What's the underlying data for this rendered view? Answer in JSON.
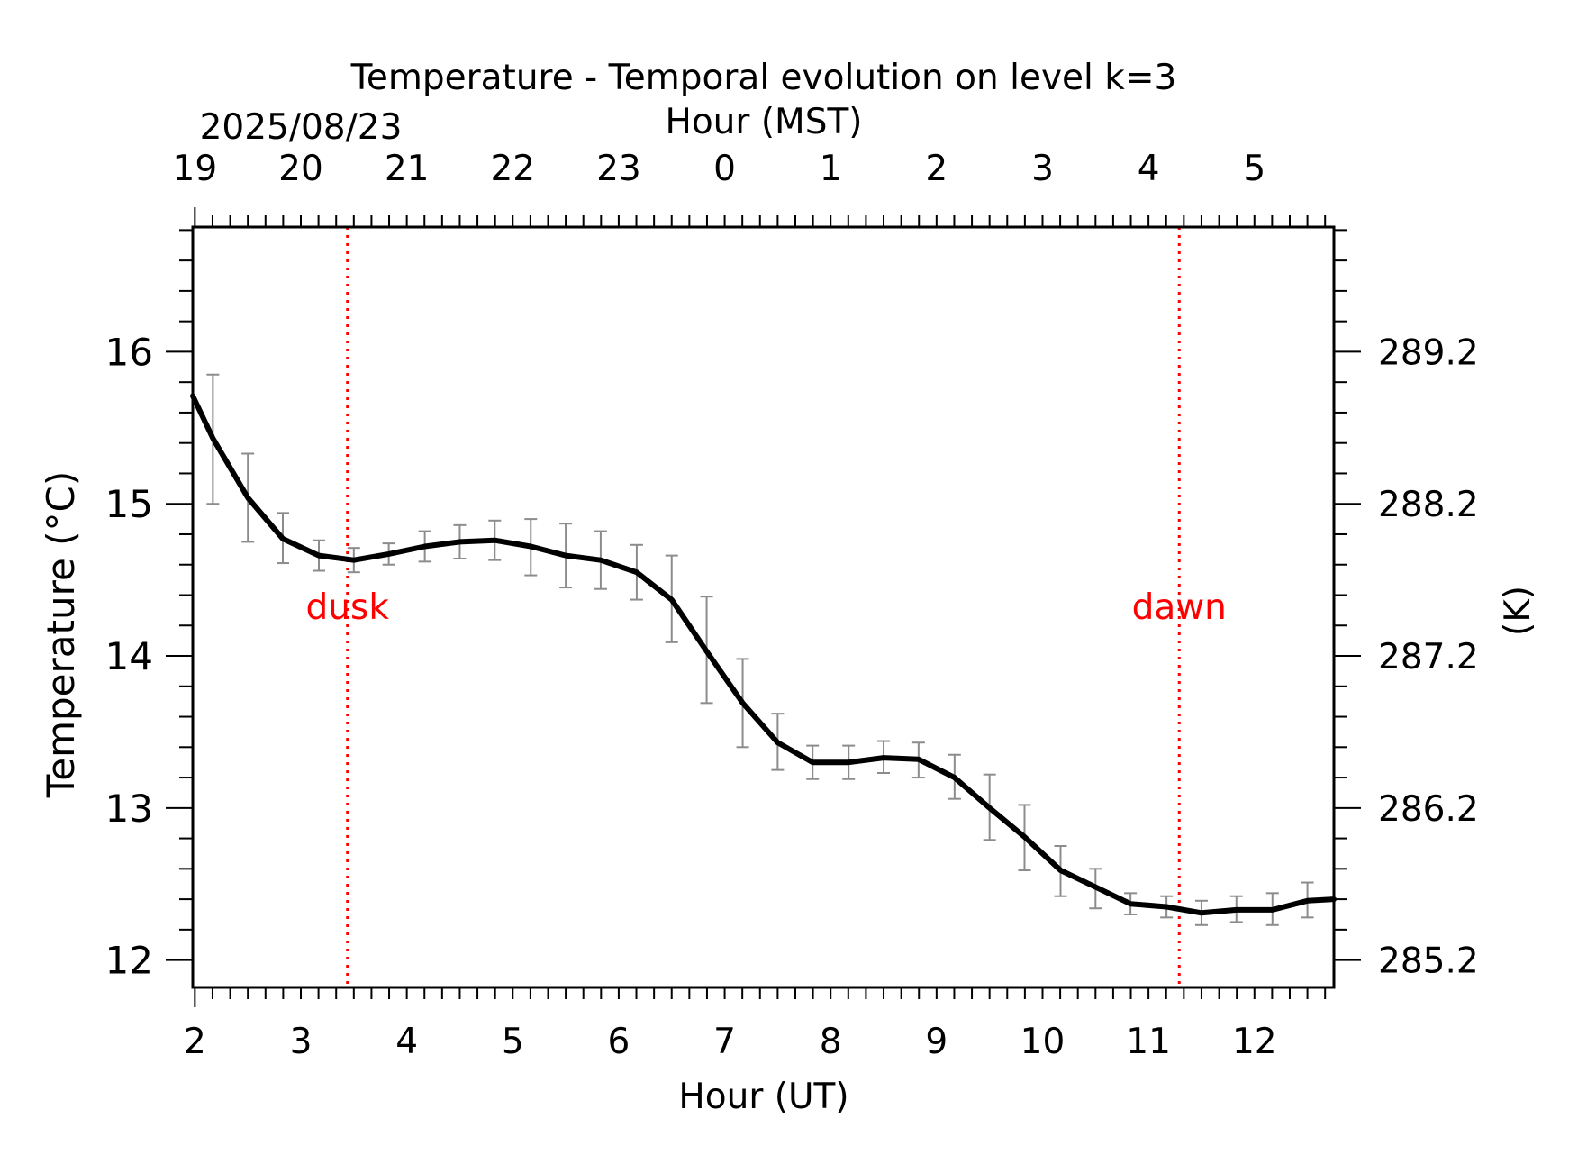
{
  "chart_data": {
    "type": "line",
    "title": "Temperature - Temporal evolution on level k=3",
    "date_label": "2025/08/23",
    "xlabel": "Hour (UT)",
    "xlabel_top": "Hour (MST)",
    "ylabel": "Temperature (°C)",
    "ylabel_right": "(K)",
    "xlim": [
      1.98,
      12.75
    ],
    "ylim": [
      11.82,
      16.82
    ],
    "x_ticks": [
      2,
      3,
      4,
      5,
      6,
      7,
      8,
      9,
      10,
      11,
      12
    ],
    "x_tick_labels": [
      "2",
      "3",
      "4",
      "5",
      "6",
      "7",
      "8",
      "9",
      "10",
      "11",
      "12"
    ],
    "x_top_tick_labels": [
      "19",
      "20",
      "21",
      "22",
      "23",
      "0",
      "1",
      "2",
      "3",
      "4",
      "5"
    ],
    "y_ticks": [
      12,
      13,
      14,
      15,
      16
    ],
    "y_tick_labels": [
      "12",
      "13",
      "14",
      "15",
      "16"
    ],
    "y_right_tick_labels": [
      "285.2",
      "286.2",
      "287.2",
      "288.2",
      "289.2"
    ],
    "grid": false,
    "line_color": "#000000",
    "errorbar_color": "#8c8c8c",
    "event_color": "#ff0000",
    "events": [
      {
        "label": "dusk",
        "x": 3.44
      },
      {
        "label": "dawn",
        "x": 11.29
      }
    ],
    "series": [
      {
        "x": [
          1.98,
          2.17,
          2.5,
          2.83,
          3.17,
          3.5,
          3.83,
          4.17,
          4.5,
          4.83,
          5.17,
          5.5,
          5.83,
          6.17,
          6.5,
          6.83,
          7.17,
          7.5,
          7.83,
          8.17,
          8.5,
          8.83,
          9.17,
          9.5,
          9.83,
          10.17,
          10.5,
          10.83,
          11.17,
          11.5,
          11.83,
          12.17,
          12.5,
          12.75
        ],
        "y": [
          15.71,
          15.43,
          15.04,
          14.77,
          14.66,
          14.63,
          14.67,
          14.72,
          14.75,
          14.76,
          14.72,
          14.66,
          14.63,
          14.55,
          14.37,
          14.03,
          13.69,
          13.43,
          13.3,
          13.3,
          13.33,
          13.32,
          13.2,
          13.0,
          12.81,
          12.59,
          12.48,
          12.37,
          12.35,
          12.31,
          12.33,
          12.33,
          12.39,
          12.4
        ],
        "err_x": [
          2.17,
          2.5,
          2.83,
          3.17,
          3.5,
          3.83,
          4.17,
          4.5,
          4.83,
          5.17,
          5.5,
          5.83,
          6.17,
          6.5,
          6.83,
          7.17,
          7.5,
          7.83,
          8.17,
          8.5,
          8.83,
          9.17,
          9.5,
          9.83,
          10.17,
          10.5,
          10.83,
          11.17,
          11.5,
          11.83,
          12.17,
          12.5
        ],
        "err_low": [
          15.0,
          14.75,
          14.61,
          14.56,
          14.55,
          14.6,
          14.62,
          14.64,
          14.63,
          14.53,
          14.45,
          14.44,
          14.37,
          14.09,
          13.69,
          13.4,
          13.25,
          13.19,
          13.19,
          13.23,
          13.2,
          13.06,
          12.79,
          12.59,
          12.42,
          12.34,
          12.3,
          12.28,
          12.23,
          12.25,
          12.23,
          12.28
        ],
        "err_high": [
          15.85,
          15.33,
          14.94,
          14.76,
          14.71,
          14.74,
          14.82,
          14.86,
          14.89,
          14.9,
          14.87,
          14.82,
          14.73,
          14.66,
          14.39,
          13.98,
          13.62,
          13.41,
          13.41,
          13.44,
          13.43,
          13.35,
          13.22,
          13.02,
          12.75,
          12.6,
          12.44,
          12.42,
          12.39,
          12.42,
          12.44,
          12.51
        ]
      }
    ]
  }
}
